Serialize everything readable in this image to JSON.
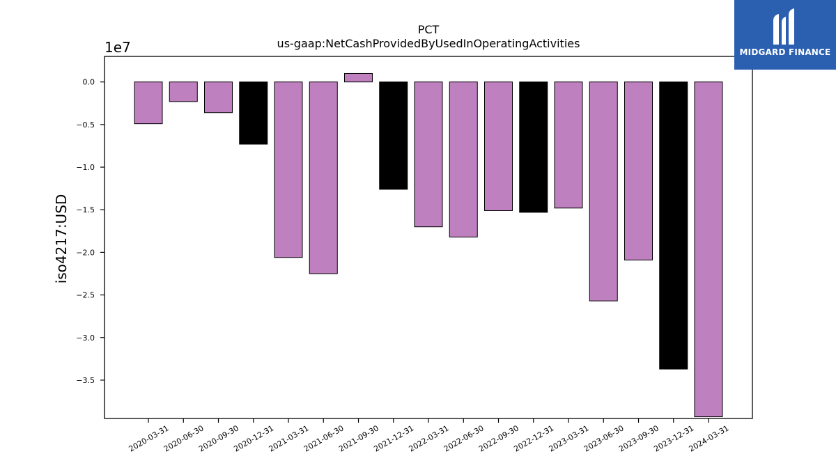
{
  "chart_data": {
    "type": "bar",
    "title": "PCT",
    "subtitle": "us-gaap:NetCashProvidedByUsedInOperatingActivities",
    "ylabel": "iso4217:USD",
    "xlabel": "",
    "y_scale_label": "1e7",
    "ylim": [
      -39500000,
      3000000
    ],
    "y_ticks": [
      0.0,
      -0.5,
      -1.0,
      -1.5,
      -2.0,
      -2.5,
      -3.0,
      -3.5
    ],
    "y_tick_labels": [
      "0.0",
      "−0.5",
      "−1.0",
      "−1.5",
      "−2.0",
      "−2.5",
      "−3.0",
      "−3.5"
    ],
    "categories": [
      "2020-03-31",
      "2020-06-30",
      "2020-09-30",
      "2020-12-31",
      "2021-03-31",
      "2021-06-30",
      "2021-09-30",
      "2021-12-31",
      "2022-03-31",
      "2022-06-30",
      "2022-09-30",
      "2022-12-31",
      "2023-03-31",
      "2023-06-30",
      "2023-09-30",
      "2023-12-31",
      "2024-03-31"
    ],
    "values": [
      -4900000,
      -2300000,
      -3600000,
      -7300000,
      -20600000,
      -22500000,
      1000000,
      -12600000,
      -17000000,
      -18200000,
      -15100000,
      -15300000,
      -14800000,
      -25700000,
      -20900000,
      -33700000,
      -39300000
    ],
    "bar_colors": [
      "#bf80bf",
      "#bf80bf",
      "#bf80bf",
      "#000000",
      "#bf80bf",
      "#bf80bf",
      "#bf80bf",
      "#000000",
      "#bf80bf",
      "#bf80bf",
      "#bf80bf",
      "#000000",
      "#bf80bf",
      "#bf80bf",
      "#bf80bf",
      "#000000",
      "#bf80bf"
    ],
    "grid": false,
    "legend": "none"
  },
  "logo": {
    "text": "MIDGARD FINANCE",
    "background": "#2b5fb0",
    "icon": "midgard-logo-icon"
  }
}
